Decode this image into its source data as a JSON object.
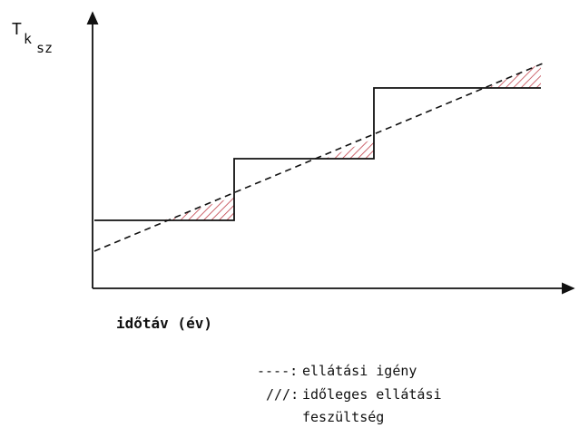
{
  "y_axis": {
    "label_main": "T",
    "label_sub1": "k",
    "label_sub2": "sz"
  },
  "x_axis": {
    "label": "időtáv (év)"
  },
  "legend": {
    "demand_marker": "----:",
    "demand_label": "ellátási igény",
    "tension_marker": "///:",
    "tension_label_line1": "időleges ellátási",
    "tension_label_line2": "feszültség"
  },
  "colors": {
    "line": "#111111",
    "hatch": "#c0404a"
  }
}
